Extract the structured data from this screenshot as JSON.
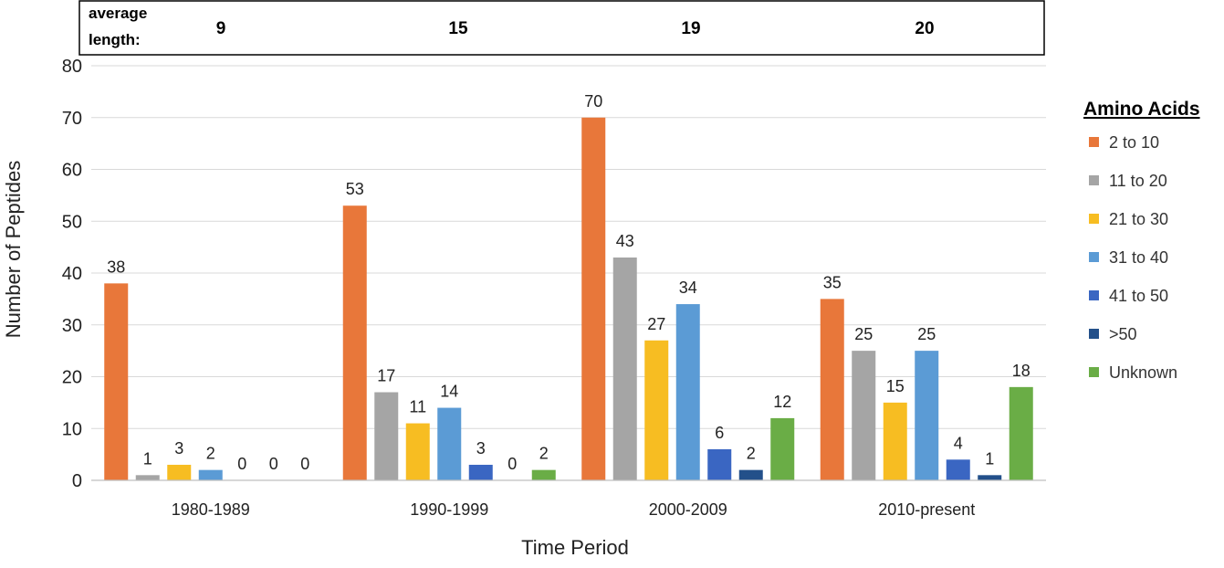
{
  "header_box": {
    "label_line1": "average",
    "label_line2": "length:",
    "values": [
      "9",
      "15",
      "19",
      "20"
    ]
  },
  "legend": {
    "title": "Amino Acids"
  },
  "chart_data": {
    "type": "bar",
    "categories": [
      "1980-1989",
      "1990-1999",
      "2000-2009",
      "2010-present"
    ],
    "series": [
      {
        "name": "2 to 10",
        "color": "#E8773A",
        "values": [
          38,
          53,
          70,
          35
        ]
      },
      {
        "name": "11 to 20",
        "color": "#A5A5A5",
        "values": [
          1,
          17,
          43,
          25
        ]
      },
      {
        "name": "21 to 30",
        "color": "#F7BD22",
        "values": [
          3,
          11,
          27,
          15
        ]
      },
      {
        "name": "31 to 40",
        "color": "#5B9BD5",
        "values": [
          2,
          14,
          34,
          25
        ]
      },
      {
        "name": "41 to 50",
        "color": "#3A66C2",
        "values": [
          0,
          3,
          6,
          4
        ]
      },
      {
        "name": ">50",
        "color": "#23508A",
        "values": [
          0,
          0,
          2,
          1
        ]
      },
      {
        "name": "Unknown",
        "color": "#6AAD46",
        "values": [
          0,
          2,
          12,
          18
        ]
      }
    ],
    "xlabel": "Time Period",
    "ylabel": "Number of Peptides",
    "ylim": [
      0,
      80
    ],
    "yticks": [
      0,
      10,
      20,
      30,
      40,
      50,
      60,
      70,
      80
    ],
    "grid": true,
    "legend_position": "right",
    "data_labels": true
  }
}
